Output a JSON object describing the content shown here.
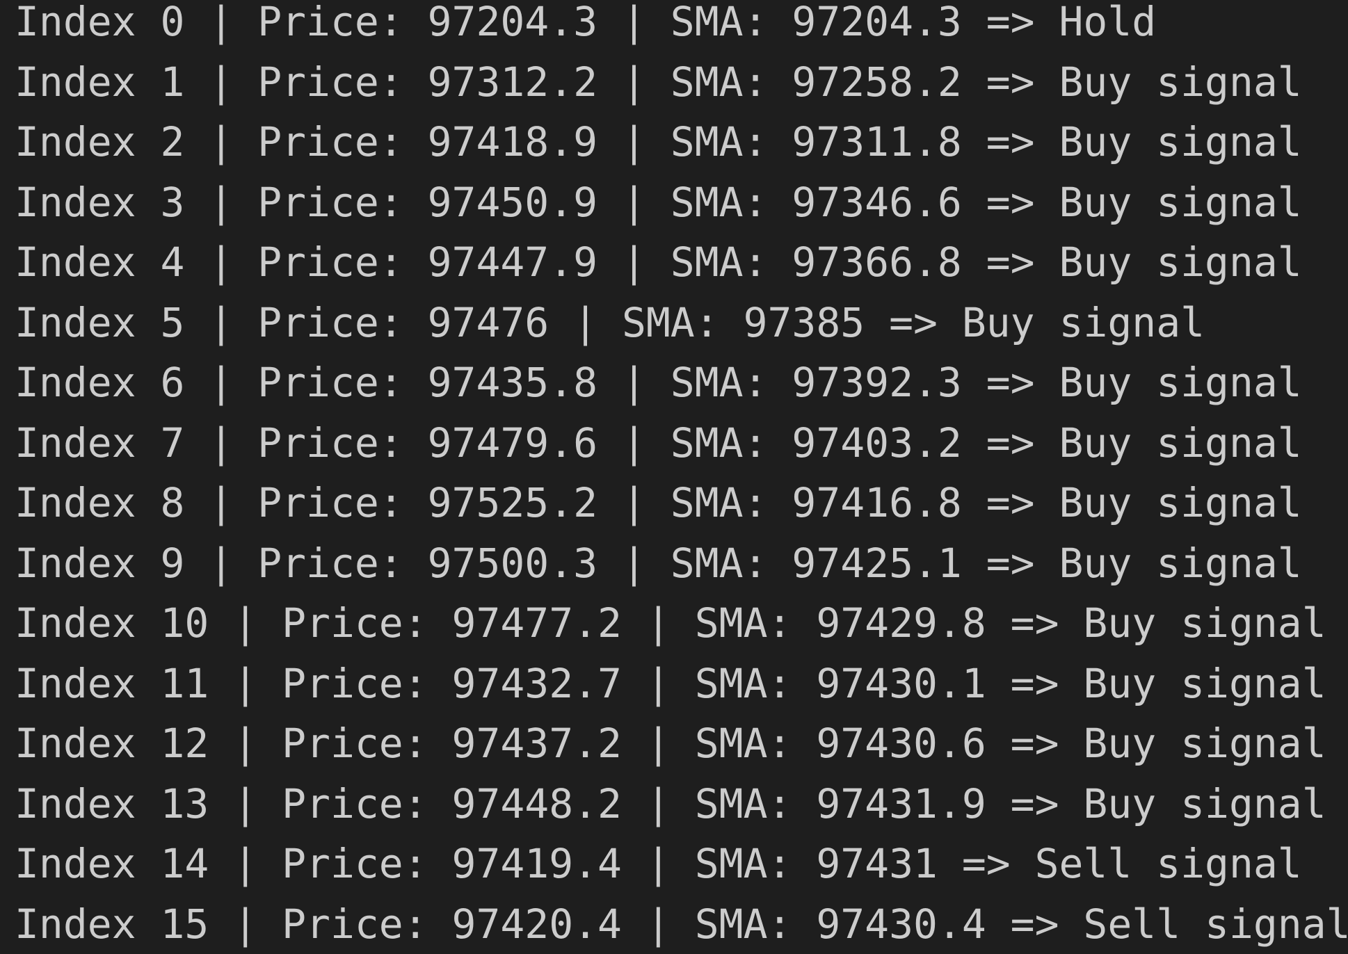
{
  "terminal": {
    "lines": [
      "Index 0 | Price: 97204.3 | SMA: 97204.3 => Hold",
      "Index 1 | Price: 97312.2 | SMA: 97258.2 => Buy signal",
      "Index 2 | Price: 97418.9 | SMA: 97311.8 => Buy signal",
      "Index 3 | Price: 97450.9 | SMA: 97346.6 => Buy signal",
      "Index 4 | Price: 97447.9 | SMA: 97366.8 => Buy signal",
      "Index 5 | Price: 97476 | SMA: 97385 => Buy signal",
      "Index 6 | Price: 97435.8 | SMA: 97392.3 => Buy signal",
      "Index 7 | Price: 97479.6 | SMA: 97403.2 => Buy signal",
      "Index 8 | Price: 97525.2 | SMA: 97416.8 => Buy signal",
      "Index 9 | Price: 97500.3 | SMA: 97425.1 => Buy signal",
      "Index 10 | Price: 97477.2 | SMA: 97429.8 => Buy signal",
      "Index 11 | Price: 97432.7 | SMA: 97430.1 => Buy signal",
      "Index 12 | Price: 97437.2 | SMA: 97430.6 => Buy signal",
      "Index 13 | Price: 97448.2 | SMA: 97431.9 => Buy signal",
      "Index 14 | Price: 97419.4 | SMA: 97431 => Sell signal",
      "Index 15 | Price: 97420.4 | SMA: 97430.4 => Sell signal"
    ]
  }
}
